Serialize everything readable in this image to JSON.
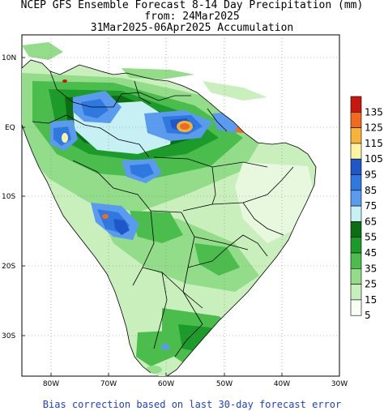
{
  "title": {
    "line1": "NCEP GFS Ensemble Forecast 8-14 Day Precipitation (mm)",
    "line2": "from: 24Mar2025",
    "line3": "31Mar2025-06Apr2025 Accumulation"
  },
  "axes": {
    "y_labels": [
      "10N",
      "EQ",
      "10S",
      "20S",
      "30S"
    ],
    "x_labels": [
      "80W",
      "70W",
      "60W",
      "50W",
      "40W",
      "30W"
    ]
  },
  "legend": {
    "items": [
      {
        "label": "135",
        "color": "#c8170f"
      },
      {
        "label": "125",
        "color": "#f26a1c"
      },
      {
        "label": "115",
        "color": "#f7b23a"
      },
      {
        "label": "105",
        "color": "#fdf3a3"
      },
      {
        "label": "95",
        "color": "#1f56c8"
      },
      {
        "label": "85",
        "color": "#2f78e0"
      },
      {
        "label": "75",
        "color": "#5a9bf0"
      },
      {
        "label": "65",
        "color": "#c7f0f4"
      },
      {
        "label": "55",
        "color": "#0a6e12"
      },
      {
        "label": "45",
        "color": "#1c9a2a"
      },
      {
        "label": "35",
        "color": "#4bbd4d"
      },
      {
        "label": "25",
        "color": "#93dc8a"
      },
      {
        "label": "15",
        "color": "#c9efbd"
      },
      {
        "label": "5",
        "color": "#f8fff4"
      }
    ]
  },
  "footer": "Bias correction based on last 30-day forecast error",
  "map": {
    "lon_range": [
      -85,
      -30
    ],
    "lat_range": [
      -36,
      13
    ],
    "grid": "dotted"
  }
}
